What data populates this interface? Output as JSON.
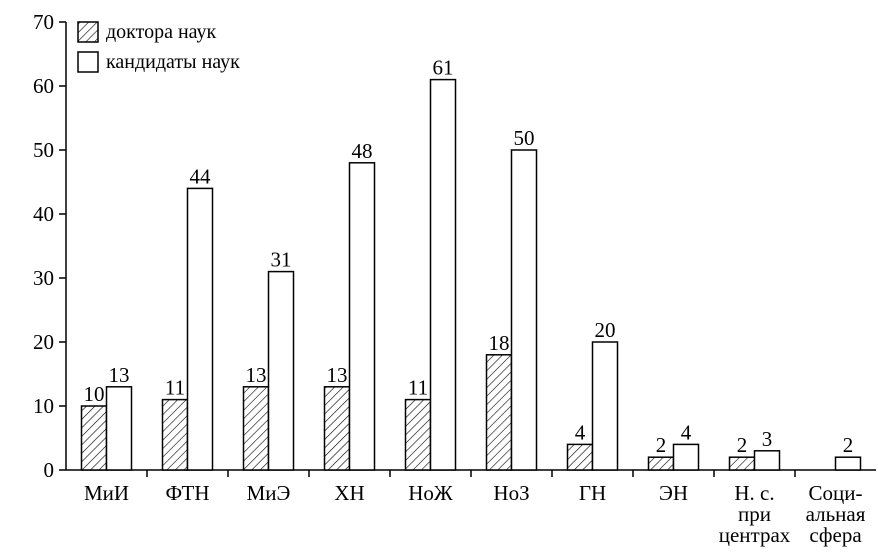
{
  "chart_data": {
    "type": "bar",
    "categories": [
      [
        "МиИ"
      ],
      [
        "ФТН"
      ],
      [
        "МиЭ"
      ],
      [
        "ХН"
      ],
      [
        "НоЖ"
      ],
      [
        "НоЗ"
      ],
      [
        "ГН"
      ],
      [
        "ЭН"
      ],
      [
        "Н. с.",
        "при",
        "центрах"
      ],
      [
        "Соци-",
        "альная",
        "сфера"
      ]
    ],
    "series": [
      {
        "name": "доктора наук",
        "values": [
          10,
          11,
          13,
          13,
          11,
          18,
          4,
          2,
          2,
          null
        ],
        "pattern": "hatch"
      },
      {
        "name": "кандидаты наук",
        "values": [
          13,
          44,
          31,
          48,
          61,
          50,
          20,
          4,
          3,
          2
        ],
        "pattern": "plain"
      }
    ],
    "ylim": [
      0,
      70
    ],
    "yticks": [
      0,
      10,
      20,
      30,
      40,
      50,
      60,
      70
    ],
    "legend_position": "top-left",
    "grid": false,
    "colors": {
      "bar_stroke": "#000000",
      "bar_fill": "#ffffff",
      "text": "#000000"
    }
  }
}
